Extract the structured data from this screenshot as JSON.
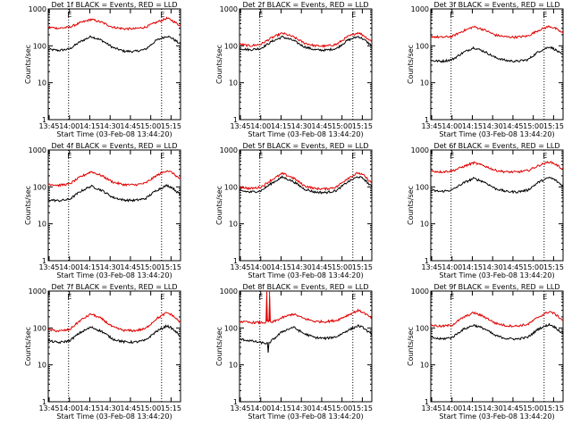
{
  "chart_data": [
    {
      "type": "line",
      "title": "Det 1f BLACK = Events, RED = LLD",
      "xlabel": "Start Time (03-Feb-08 13:44:20)",
      "ylabel": "Counts/sec",
      "yscale": "log",
      "ylim": [
        1,
        1000
      ],
      "y_ticks": [
        "1",
        "10",
        "100",
        "1000"
      ],
      "xlim": [
        "13:44:20",
        "15:22:00"
      ],
      "x_ticks": [
        "13:45",
        "14:00",
        "14:15",
        "14:30",
        "14:45",
        "15:00",
        "15:15"
      ],
      "markers": [
        {
          "time": "13:59:20",
          "label": "E"
        },
        {
          "time": "15:08:00",
          "label": "E"
        }
      ],
      "series": [
        {
          "name": "Events",
          "color": "#000000",
          "x": [
            "13:44:20",
            "13:52",
            "14:00",
            "14:08",
            "14:16",
            "14:24",
            "14:32",
            "14:40",
            "14:48",
            "14:56",
            "15:04",
            "15:12",
            "15:16",
            "15:22"
          ],
          "values": [
            80,
            75,
            82,
            130,
            180,
            140,
            90,
            72,
            70,
            80,
            140,
            185,
            160,
            110
          ]
        },
        {
          "name": "LLD",
          "color": "#e00000",
          "x": [
            "13:44:20",
            "13:52",
            "14:00",
            "14:08",
            "14:16",
            "14:24",
            "14:32",
            "14:40",
            "14:48",
            "14:56",
            "15:04",
            "15:12",
            "15:16",
            "15:22"
          ],
          "values": [
            320,
            300,
            320,
            420,
            520,
            430,
            320,
            290,
            290,
            320,
            430,
            560,
            480,
            350
          ]
        }
      ]
    },
    {
      "type": "line",
      "title": "Det 2f BLACK = Events, RED = LLD",
      "xlabel": "Start Time (03-Feb-08 13:44:20)",
      "ylabel": "Counts/sec",
      "yscale": "log",
      "ylim": [
        1,
        1000
      ],
      "y_ticks": [
        "1",
        "10",
        "100",
        "1000"
      ],
      "xlim": [
        "13:44:20",
        "15:22:00"
      ],
      "x_ticks": [
        "13:45",
        "14:00",
        "14:15",
        "14:30",
        "14:45",
        "15:00",
        "15:15"
      ],
      "markers": [
        {
          "time": "13:59:20",
          "label": "E"
        },
        {
          "time": "15:08:00",
          "label": "E"
        }
      ],
      "series": [
        {
          "name": "Events",
          "color": "#000000",
          "x": [
            "13:44:20",
            "13:52",
            "14:00",
            "14:08",
            "14:16",
            "14:24",
            "14:32",
            "14:40",
            "14:48",
            "14:56",
            "15:04",
            "15:12",
            "15:16",
            "15:22"
          ],
          "values": [
            85,
            78,
            85,
            130,
            175,
            140,
            95,
            78,
            76,
            85,
            140,
            180,
            150,
            100
          ]
        },
        {
          "name": "LLD",
          "color": "#e00000",
          "x": [
            "13:44:20",
            "13:52",
            "14:00",
            "14:08",
            "14:16",
            "14:24",
            "14:32",
            "14:40",
            "14:48",
            "14:56",
            "15:04",
            "15:12",
            "15:16",
            "15:22"
          ],
          "values": [
            110,
            100,
            110,
            165,
            220,
            175,
            120,
            100,
            98,
            110,
            175,
            230,
            190,
            130
          ]
        }
      ]
    },
    {
      "type": "line",
      "title": "Det 3f BLACK = Events, RED = LLD",
      "xlabel": "Start Time (03-Feb-08 13:44:20)",
      "ylabel": "Counts/sec",
      "yscale": "log",
      "ylim": [
        1,
        1000
      ],
      "y_ticks": [
        "1",
        "10",
        "100",
        "1000"
      ],
      "xlim": [
        "13:44:20",
        "15:22:00"
      ],
      "x_ticks": [
        "13:45",
        "14:00",
        "14:15",
        "14:30",
        "14:45",
        "15:00",
        "15:15"
      ],
      "markers": [
        {
          "time": "13:59:20",
          "label": "E"
        },
        {
          "time": "15:08:00",
          "label": "E"
        }
      ],
      "series": [
        {
          "name": "Events",
          "color": "#000000",
          "x": [
            "13:44:20",
            "13:52",
            "14:00",
            "14:08",
            "14:16",
            "14:24",
            "14:32",
            "14:40",
            "14:48",
            "14:56",
            "15:04",
            "15:12",
            "15:16",
            "15:22"
          ],
          "values": [
            40,
            38,
            42,
            65,
            90,
            70,
            48,
            40,
            38,
            42,
            70,
            95,
            80,
            55
          ]
        },
        {
          "name": "LLD",
          "color": "#e00000",
          "x": [
            "13:44:20",
            "13:52",
            "14:00",
            "14:08",
            "14:16",
            "14:24",
            "14:32",
            "14:40",
            "14:48",
            "14:56",
            "15:04",
            "15:12",
            "15:16",
            "15:22"
          ],
          "values": [
            180,
            170,
            180,
            250,
            330,
            270,
            195,
            175,
            172,
            185,
            265,
            340,
            300,
            220
          ]
        }
      ]
    },
    {
      "type": "line",
      "title": "Det 4f BLACK = Events, RED = LLD",
      "xlabel": "Start Time (03-Feb-08 13:44:20)",
      "ylabel": "Counts/sec",
      "yscale": "log",
      "ylim": [
        1,
        1000
      ],
      "y_ticks": [
        "1",
        "10",
        "100",
        "1000"
      ],
      "xlim": [
        "13:44:20",
        "15:22:00"
      ],
      "x_ticks": [
        "13:45",
        "14:00",
        "14:15",
        "14:30",
        "14:45",
        "15:00",
        "15:15"
      ],
      "markers": [
        {
          "time": "13:59:20",
          "label": "E"
        },
        {
          "time": "15:08:00",
          "label": "E"
        }
      ],
      "series": [
        {
          "name": "Events",
          "color": "#000000",
          "x": [
            "13:44:20",
            "13:52",
            "14:00",
            "14:08",
            "14:16",
            "14:24",
            "14:32",
            "14:40",
            "14:48",
            "14:56",
            "15:04",
            "15:12",
            "15:16",
            "15:22"
          ],
          "values": [
            45,
            42,
            46,
            75,
            105,
            80,
            52,
            44,
            43,
            48,
            80,
            110,
            95,
            60
          ]
        },
        {
          "name": "LLD",
          "color": "#e00000",
          "x": [
            "13:44:20",
            "13:52",
            "14:00",
            "14:08",
            "14:16",
            "14:24",
            "14:32",
            "14:40",
            "14:48",
            "14:56",
            "15:04",
            "15:12",
            "15:16",
            "15:22"
          ],
          "values": [
            120,
            110,
            120,
            185,
            260,
            200,
            135,
            115,
            113,
            125,
            200,
            280,
            240,
            160
          ]
        }
      ]
    },
    {
      "type": "line",
      "title": "Det 5f BLACK = Events, RED = LLD",
      "xlabel": "Start Time (03-Feb-08 13:44:20)",
      "ylabel": "Counts/sec",
      "yscale": "log",
      "ylim": [
        1,
        1000
      ],
      "y_ticks": [
        "1",
        "10",
        "100",
        "1000"
      ],
      "xlim": [
        "13:44:20",
        "15:22:00"
      ],
      "x_ticks": [
        "13:45",
        "14:00",
        "14:15",
        "14:30",
        "14:45",
        "15:00",
        "15:15"
      ],
      "markers": [
        {
          "time": "13:59:20",
          "label": "E"
        },
        {
          "time": "15:08:00",
          "label": "E"
        }
      ],
      "series": [
        {
          "name": "Events",
          "color": "#000000",
          "x": [
            "13:44:20",
            "13:52",
            "14:00",
            "14:08",
            "14:16",
            "14:24",
            "14:32",
            "14:40",
            "14:48",
            "14:56",
            "15:04",
            "15:12",
            "15:16",
            "15:22"
          ],
          "values": [
            80,
            72,
            78,
            125,
            185,
            140,
            88,
            72,
            70,
            80,
            135,
            190,
            165,
            100
          ]
        },
        {
          "name": "LLD",
          "color": "#e00000",
          "x": [
            "13:44:20",
            "13:52",
            "14:00",
            "14:08",
            "14:16",
            "14:24",
            "14:32",
            "14:40",
            "14:48",
            "14:56",
            "15:04",
            "15:12",
            "15:16",
            "15:22"
          ],
          "values": [
            100,
            90,
            98,
            155,
            230,
            175,
            108,
            90,
            88,
            100,
            170,
            240,
            205,
            125
          ]
        }
      ]
    },
    {
      "type": "line",
      "title": "Det 6f BLACK = Events, RED = LLD",
      "xlabel": "Start Time (03-Feb-08 13:44:20)",
      "ylabel": "Counts/sec",
      "yscale": "log",
      "ylim": [
        1,
        1000
      ],
      "y_ticks": [
        "1",
        "10",
        "100",
        "1000"
      ],
      "xlim": [
        "13:44:20",
        "15:22:00"
      ],
      "x_ticks": [
        "13:45",
        "14:00",
        "14:15",
        "14:30",
        "14:45",
        "15:00",
        "15:15"
      ],
      "markers": [
        {
          "time": "13:59:20",
          "label": "E"
        },
        {
          "time": "15:08:00",
          "label": "E"
        }
      ],
      "series": [
        {
          "name": "Events",
          "color": "#000000",
          "x": [
            "13:44:20",
            "13:52",
            "14:00",
            "14:08",
            "14:16",
            "14:24",
            "14:32",
            "14:40",
            "14:48",
            "14:56",
            "15:04",
            "15:12",
            "15:16",
            "15:22"
          ],
          "values": [
            80,
            75,
            82,
            125,
            170,
            135,
            90,
            75,
            73,
            82,
            135,
            180,
            155,
            105
          ]
        },
        {
          "name": "LLD",
          "color": "#e00000",
          "x": [
            "13:44:20",
            "13:52",
            "14:00",
            "14:08",
            "14:16",
            "14:24",
            "14:32",
            "14:40",
            "14:48",
            "14:56",
            "15:04",
            "15:12",
            "15:16",
            "15:22"
          ],
          "values": [
            270,
            255,
            270,
            350,
            450,
            370,
            280,
            255,
            252,
            275,
            380,
            480,
            420,
            300
          ]
        }
      ]
    },
    {
      "type": "line",
      "title": "Det 7f BLACK = Events, RED = LLD",
      "xlabel": "Start Time (03-Feb-08 13:44:20)",
      "ylabel": "Counts/sec",
      "yscale": "log",
      "ylim": [
        1,
        1000
      ],
      "y_ticks": [
        "1",
        "10",
        "100",
        "1000"
      ],
      "xlim": [
        "13:44:20",
        "15:22:00"
      ],
      "x_ticks": [
        "13:45",
        "14:00",
        "14:15",
        "14:30",
        "14:45",
        "15:00",
        "15:15"
      ],
      "markers": [
        {
          "time": "13:59:20",
          "label": "E"
        },
        {
          "time": "15:08:00",
          "label": "E"
        }
      ],
      "series": [
        {
          "name": "Events",
          "color": "#000000",
          "x": [
            "13:44:20",
            "13:52",
            "14:00",
            "14:08",
            "14:16",
            "14:24",
            "14:32",
            "14:40",
            "14:48",
            "14:56",
            "15:04",
            "15:12",
            "15:16",
            "15:22"
          ],
          "values": [
            45,
            40,
            45,
            75,
            105,
            80,
            50,
            42,
            41,
            46,
            80,
            115,
            95,
            60
          ]
        },
        {
          "name": "LLD",
          "color": "#e00000",
          "x": [
            "13:44:20",
            "13:52",
            "14:00",
            "14:08",
            "14:16",
            "14:24",
            "14:32",
            "14:40",
            "14:48",
            "14:56",
            "15:04",
            "15:12",
            "15:16",
            "15:22"
          ],
          "values": [
            90,
            82,
            90,
            160,
            240,
            175,
            105,
            86,
            84,
            95,
            175,
            260,
            220,
            140
          ]
        }
      ]
    },
    {
      "type": "line",
      "title": "Det 8f BLACK = Events, RED = LLD",
      "xlabel": "Start Time (03-Feb-08 13:44:20)",
      "ylabel": "Counts/sec",
      "yscale": "log",
      "ylim": [
        1,
        1000
      ],
      "y_ticks": [
        "1",
        "10",
        "100",
        "1000"
      ],
      "xlim": [
        "13:44:20",
        "15:22:00"
      ],
      "x_ticks": [
        "13:45",
        "14:00",
        "14:15",
        "14:30",
        "14:45",
        "15:00",
        "15:15"
      ],
      "markers": [
        {
          "time": "13:59:20",
          "label": "E"
        },
        {
          "time": "15:08:00",
          "label": "E"
        }
      ],
      "series": [
        {
          "name": "Events",
          "color": "#000000",
          "x": [
            "13:44:20",
            "13:52",
            "14:00",
            "14:05",
            "14:05:30",
            "14:06",
            "14:08",
            "14:16",
            "14:24",
            "14:32",
            "14:40",
            "14:48",
            "14:56",
            "15:04",
            "15:12",
            "15:16",
            "15:22"
          ],
          "values": [
            50,
            45,
            40,
            38,
            20,
            38,
            45,
            80,
            105,
            70,
            55,
            52,
            58,
            85,
            115,
            100,
            65
          ]
        },
        {
          "name": "LLD",
          "color": "#e00000",
          "x": [
            "13:44:20",
            "13:52",
            "14:00",
            "14:04",
            "14:04:30",
            "14:05",
            "14:06",
            "14:06:30",
            "14:07",
            "14:08",
            "14:16",
            "14:24",
            "14:32",
            "14:40",
            "14:48",
            "14:56",
            "15:04",
            "15:12",
            "15:16",
            "15:22"
          ],
          "values": [
            150,
            140,
            140,
            140,
            1000,
            140,
            140,
            1000,
            140,
            140,
            190,
            240,
            180,
            150,
            148,
            160,
            220,
            300,
            260,
            180
          ]
        }
      ]
    },
    {
      "type": "line",
      "title": "Det 9f BLACK = Events, RED = LLD",
      "xlabel": "Start Time (03-Feb-08 13:44:20)",
      "ylabel": "Counts/sec",
      "yscale": "log",
      "ylim": [
        1,
        1000
      ],
      "y_ticks": [
        "1",
        "10",
        "100",
        "1000"
      ],
      "xlim": [
        "13:44:20",
        "15:22:00"
      ],
      "x_ticks": [
        "13:45",
        "14:00",
        "14:15",
        "14:30",
        "14:45",
        "15:00",
        "15:15"
      ],
      "markers": [
        {
          "time": "13:59:20",
          "label": "E"
        },
        {
          "time": "15:08:00",
          "label": "E"
        }
      ],
      "series": [
        {
          "name": "Events",
          "color": "#000000",
          "x": [
            "13:44:20",
            "13:52",
            "14:00",
            "14:08",
            "14:16",
            "14:24",
            "14:32",
            "14:40",
            "14:48",
            "14:56",
            "15:04",
            "15:12",
            "15:16",
            "15:22"
          ],
          "values": [
            55,
            50,
            55,
            90,
            120,
            95,
            62,
            52,
            50,
            56,
            95,
            125,
            105,
            70
          ]
        },
        {
          "name": "LLD",
          "color": "#e00000",
          "x": [
            "13:44:20",
            "13:52",
            "14:00",
            "14:08",
            "14:16",
            "14:24",
            "14:32",
            "14:40",
            "14:48",
            "14:56",
            "15:04",
            "15:12",
            "15:16",
            "15:22"
          ],
          "values": [
            120,
            110,
            120,
            190,
            260,
            200,
            135,
            115,
            113,
            125,
            200,
            280,
            240,
            160
          ]
        }
      ]
    }
  ]
}
